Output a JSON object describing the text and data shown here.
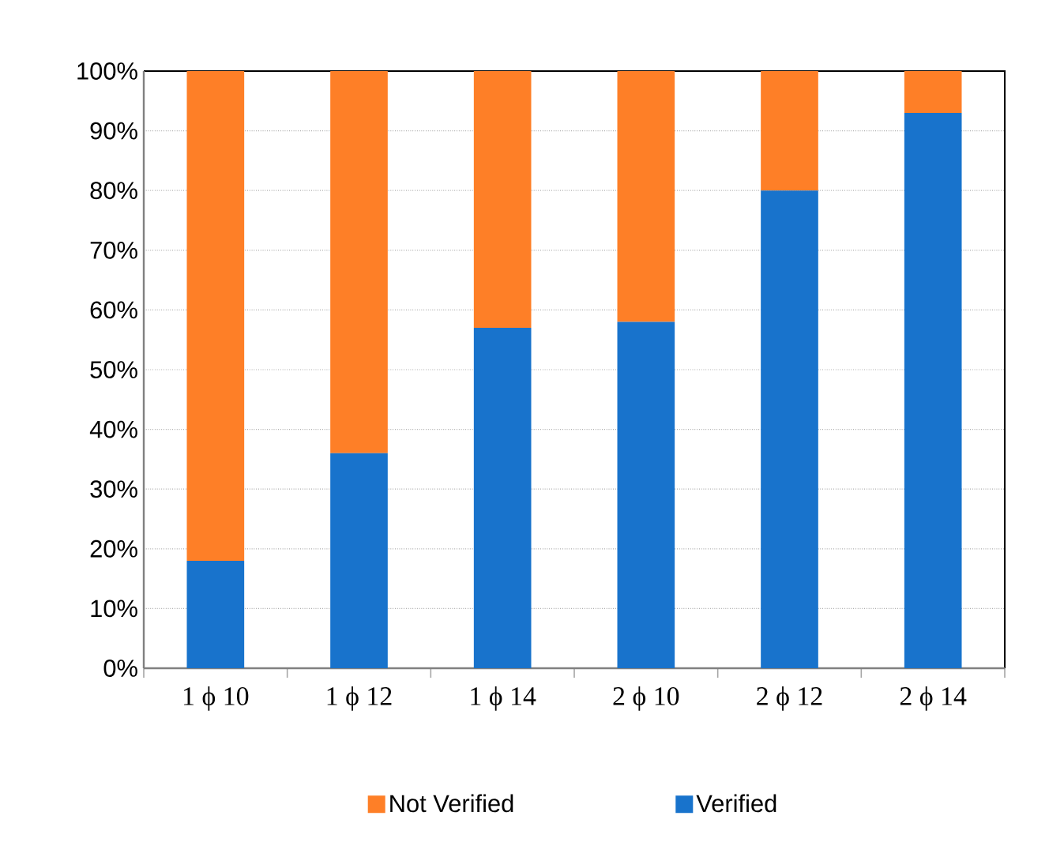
{
  "chart_data": {
    "type": "bar",
    "stacked": true,
    "categories": [
      "1 ϕ 10",
      "1 ϕ 12",
      "1 ϕ 14",
      "2 ϕ 10",
      "2 ϕ 12",
      "2 ϕ 14"
    ],
    "series": [
      {
        "name": "Verified",
        "color": "#1873cc",
        "values": [
          18,
          36,
          57,
          58,
          80,
          93
        ]
      },
      {
        "name": "Not Verified",
        "color": "#fe7f27",
        "values": [
          82,
          64,
          43,
          42,
          20,
          7
        ]
      }
    ],
    "ylim": [
      0,
      100
    ],
    "yticks": [
      {
        "value": 0,
        "label": "0%"
      },
      {
        "value": 10,
        "label": "10%"
      },
      {
        "value": 20,
        "label": "20%"
      },
      {
        "value": 30,
        "label": "30%"
      },
      {
        "value": 40,
        "label": "40%"
      },
      {
        "value": 50,
        "label": "50%"
      },
      {
        "value": 60,
        "label": "60%"
      },
      {
        "value": 70,
        "label": "70%"
      },
      {
        "value": 80,
        "label": "80%"
      },
      {
        "value": 90,
        "label": "90%"
      },
      {
        "value": 100,
        "label": "100%"
      }
    ],
    "grid": "y",
    "legend": "bottom"
  }
}
